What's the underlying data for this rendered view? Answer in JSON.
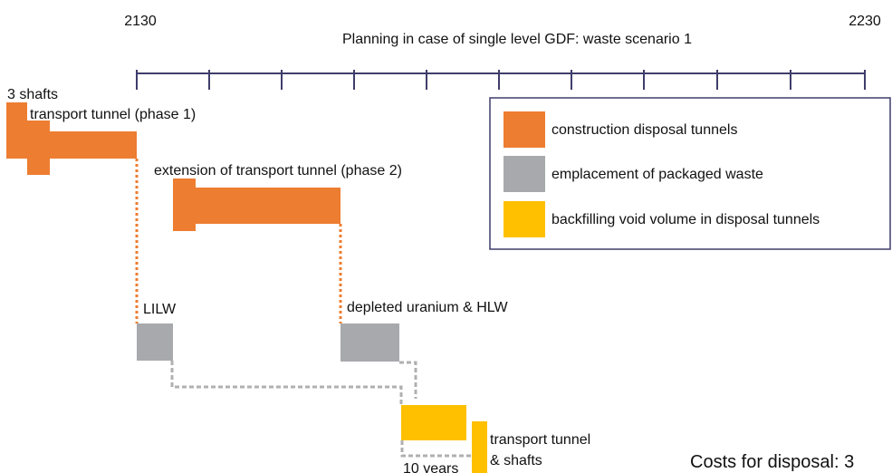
{
  "timeline": {
    "start_label": "2130",
    "end_label": "2230",
    "title": "Planning in case of single level GDF: waste scenario 1"
  },
  "labels": {
    "shafts": "3 shafts",
    "phase1": "transport tunnel (phase 1)",
    "phase2": "extension of transport tunnel (phase 2)",
    "lilw": "LILW",
    "du_hlw": "depleted uranium & HLW",
    "ten_years": "10 years",
    "tt_line1": "transport tunnel",
    "tt_line2": "& shafts",
    "costs": "Costs for disposal: 3"
  },
  "legend": [
    {
      "label": "construction disposal tunnels",
      "color": "#ed7d31"
    },
    {
      "label": "emplacement of packaged waste",
      "color": "#a7a9ac"
    },
    {
      "label": "backfilling void volume in disposal tunnels",
      "color": "#ffc000"
    }
  ]
}
